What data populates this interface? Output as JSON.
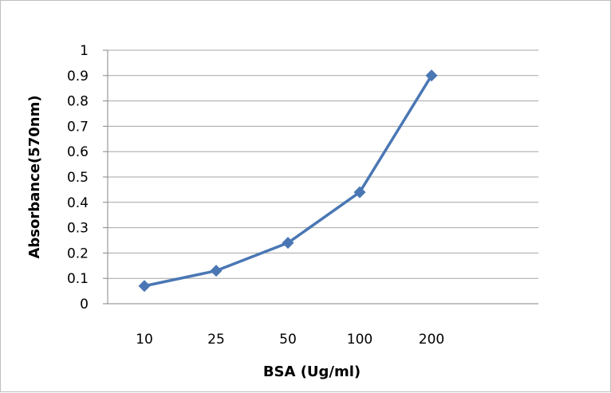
{
  "chart_data": {
    "type": "line",
    "categories": [
      "10",
      "25",
      "50",
      "100",
      "200"
    ],
    "series": [
      {
        "values": [
          0.07,
          0.13,
          0.24,
          0.44,
          0.9
        ]
      }
    ],
    "xlabel": "BSA (Ug/ml)",
    "ylabel": "Absorbance(570nm)",
    "ylim": [
      0,
      1
    ],
    "yticks": [
      "0",
      "0.1",
      "0.2",
      "0.3",
      "0.4",
      "0.5",
      "0.6",
      "0.7",
      "0.8",
      "0.9",
      "1"
    ],
    "grid": true,
    "legend": "none",
    "marker": "diamond",
    "colors": {
      "series": "#4a77b4",
      "grid": "#a6a6a6",
      "axis": "#868686"
    }
  }
}
